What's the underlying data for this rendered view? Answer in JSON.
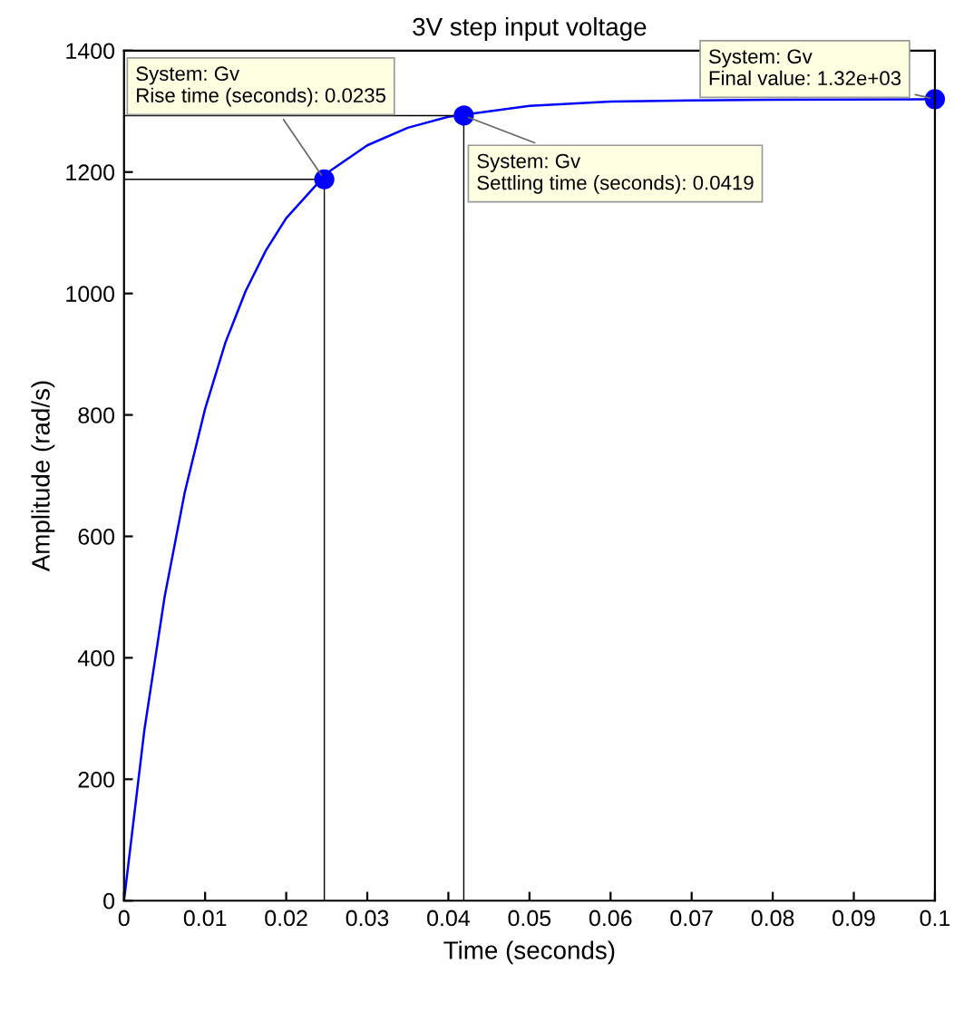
{
  "chart_data": {
    "type": "line",
    "title": "3V step input voltage",
    "xlabel": "Time (seconds)",
    "ylabel": "Amplitude (rad/s)",
    "x": [
      0,
      0.0025,
      0.005,
      0.0075,
      0.01,
      0.0125,
      0.015,
      0.0175,
      0.02,
      0.025,
      0.03,
      0.035,
      0.04,
      0.05,
      0.06,
      0.07,
      0.08,
      0.1
    ],
    "series": [
      {
        "color": "#0000ff",
        "values": [
          0,
          280,
          500,
          673,
          810,
          919,
          1004,
          1071,
          1124,
          1198,
          1244,
          1273,
          1291,
          1309,
          1316,
          1318,
          1319,
          1320
        ]
      },
      {
        "color": "#000000",
        "x": [
          0,
          0.0247,
          0.0247
        ],
        "values": [
          1188,
          1188,
          0
        ]
      },
      {
        "color": "#000000",
        "x": [
          0,
          0.0419,
          0.0419
        ],
        "values": [
          1293,
          1293,
          0
        ]
      }
    ],
    "xlim": [
      0,
      0.1
    ],
    "ylim": [
      0,
      1400
    ],
    "xticks": [
      0,
      0.01,
      0.02,
      0.03,
      0.04,
      0.05,
      0.06,
      0.07,
      0.08,
      0.09,
      0.1
    ],
    "yticks": [
      0,
      200,
      400,
      600,
      800,
      1000,
      1200,
      1400
    ],
    "grid": false,
    "marker": "none",
    "line_style": "solid",
    "annotations": [
      {
        "text": "System: Gv\nRise time (seconds): 0.0235",
        "x": 0.0247,
        "y": 1188
      },
      {
        "text": "System: Gv\nSettling time (seconds): 0.0419",
        "x": 0.0419,
        "y": 1293
      },
      {
        "text": "System: Gv\nFinal value: 1.32e+03",
        "x": 0.1,
        "y": 1320
      }
    ]
  }
}
